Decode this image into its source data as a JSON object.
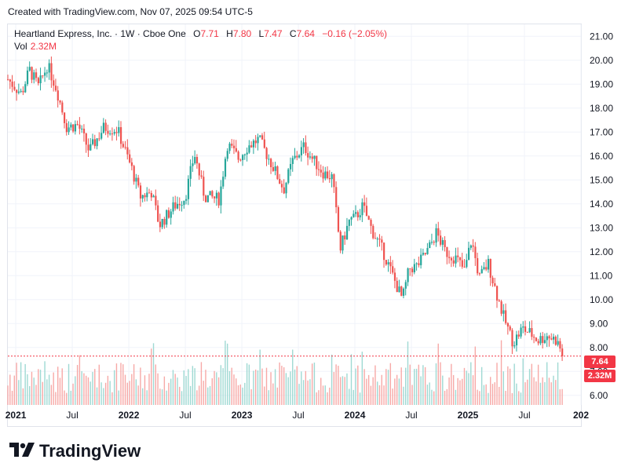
{
  "header": {
    "created": "Created with TradingView.com, Nov 07, 2025 09:54 UTC-5"
  },
  "legend": {
    "symbol": "Heartland Express, Inc. · 1W · Cboe One",
    "o_label": "O",
    "o": "7.71",
    "h_label": "H",
    "h": "7.80",
    "l_label": "L",
    "l": "7.47",
    "c_label": "C",
    "c": "7.64",
    "change": "−0.16 (−2.05%)",
    "vol_label": "Vol",
    "vol": "2.32M"
  },
  "tags": {
    "price": "7.64",
    "volume": "2.32M"
  },
  "brand": {
    "name": "TradingView",
    "logo": "tradingview-logo-icon"
  },
  "colors": {
    "up": "#26a69a",
    "down": "#ef5350",
    "vol_up": "#9fd9d3",
    "vol_down": "#f7a9a7",
    "grid": "#f0f3fa",
    "price_line": "#f23645"
  },
  "chart_data": {
    "type": "candlestick",
    "title": "Heartland Express, Inc. · 1W · Cboe One",
    "y_ticks": [
      "6.00",
      "7.00",
      "8.00",
      "9.00",
      "10.00",
      "11.00",
      "12.00",
      "13.00",
      "14.00",
      "15.00",
      "16.00",
      "17.00",
      "18.00",
      "19.00",
      "20.00",
      "21.00"
    ],
    "x_ticks": [
      {
        "label": "2021",
        "t": 2021.0
      },
      {
        "label": "Jul",
        "t": 2021.5
      },
      {
        "label": "2022",
        "t": 2022.0
      },
      {
        "label": "Jul",
        "t": 2022.5
      },
      {
        "label": "2023",
        "t": 2023.0
      },
      {
        "label": "Jul",
        "t": 2023.5
      },
      {
        "label": "2024",
        "t": 2024.0
      },
      {
        "label": "Jul",
        "t": 2024.5
      },
      {
        "label": "2025",
        "t": 2025.0
      },
      {
        "label": "Jul",
        "t": 2025.5
      },
      {
        "label": "202",
        "t": 2026.0
      }
    ],
    "ylim": [
      5.6,
      21.5
    ],
    "xlim": [
      2020.93,
      2026.0
    ],
    "last_close": 7.64,
    "close_path": [
      {
        "t": 2020.93,
        "v": 19.2
      },
      {
        "t": 2021.05,
        "v": 18.6
      },
      {
        "t": 2021.12,
        "v": 19.6
      },
      {
        "t": 2021.2,
        "v": 18.9
      },
      {
        "t": 2021.28,
        "v": 19.8
      },
      {
        "t": 2021.36,
        "v": 18.8
      },
      {
        "t": 2021.45,
        "v": 17.2
      },
      {
        "t": 2021.55,
        "v": 17.3
      },
      {
        "t": 2021.65,
        "v": 16.2
      },
      {
        "t": 2021.78,
        "v": 17.2
      },
      {
        "t": 2021.9,
        "v": 17.1
      },
      {
        "t": 2022.03,
        "v": 15.4
      },
      {
        "t": 2022.1,
        "v": 14.3
      },
      {
        "t": 2022.2,
        "v": 14.5
      },
      {
        "t": 2022.27,
        "v": 13.1
      },
      {
        "t": 2022.4,
        "v": 13.9
      },
      {
        "t": 2022.5,
        "v": 14.3
      },
      {
        "t": 2022.58,
        "v": 16.1
      },
      {
        "t": 2022.67,
        "v": 14.3
      },
      {
        "t": 2022.8,
        "v": 14.2
      },
      {
        "t": 2022.87,
        "v": 16.5
      },
      {
        "t": 2022.97,
        "v": 15.9
      },
      {
        "t": 2023.05,
        "v": 16.4
      },
      {
        "t": 2023.15,
        "v": 16.7
      },
      {
        "t": 2023.27,
        "v": 15.6
      },
      {
        "t": 2023.37,
        "v": 14.6
      },
      {
        "t": 2023.45,
        "v": 15.8
      },
      {
        "t": 2023.55,
        "v": 16.4
      },
      {
        "t": 2023.62,
        "v": 15.9
      },
      {
        "t": 2023.72,
        "v": 15.3
      },
      {
        "t": 2023.8,
        "v": 15.1
      },
      {
        "t": 2023.87,
        "v": 12.1
      },
      {
        "t": 2023.95,
        "v": 13.3
      },
      {
        "t": 2024.0,
        "v": 13.4
      },
      {
        "t": 2024.07,
        "v": 13.9
      },
      {
        "t": 2024.15,
        "v": 12.9
      },
      {
        "t": 2024.25,
        "v": 12.0
      },
      {
        "t": 2024.35,
        "v": 10.8
      },
      {
        "t": 2024.42,
        "v": 10.0
      },
      {
        "t": 2024.48,
        "v": 11.3
      },
      {
        "t": 2024.55,
        "v": 11.4
      },
      {
        "t": 2024.65,
        "v": 12.1
      },
      {
        "t": 2024.72,
        "v": 12.8
      },
      {
        "t": 2024.8,
        "v": 12.0
      },
      {
        "t": 2024.9,
        "v": 11.7
      },
      {
        "t": 2024.97,
        "v": 11.2
      },
      {
        "t": 2025.03,
        "v": 12.5
      },
      {
        "t": 2025.1,
        "v": 10.9
      },
      {
        "t": 2025.18,
        "v": 11.5
      },
      {
        "t": 2025.25,
        "v": 10.3
      },
      {
        "t": 2025.32,
        "v": 9.2
      },
      {
        "t": 2025.4,
        "v": 8.2
      },
      {
        "t": 2025.48,
        "v": 8.8
      },
      {
        "t": 2025.55,
        "v": 8.6
      },
      {
        "t": 2025.62,
        "v": 8.3
      },
      {
        "t": 2025.7,
        "v": 8.5
      },
      {
        "t": 2025.78,
        "v": 8.3
      },
      {
        "t": 2025.85,
        "v": 7.64
      }
    ]
  }
}
